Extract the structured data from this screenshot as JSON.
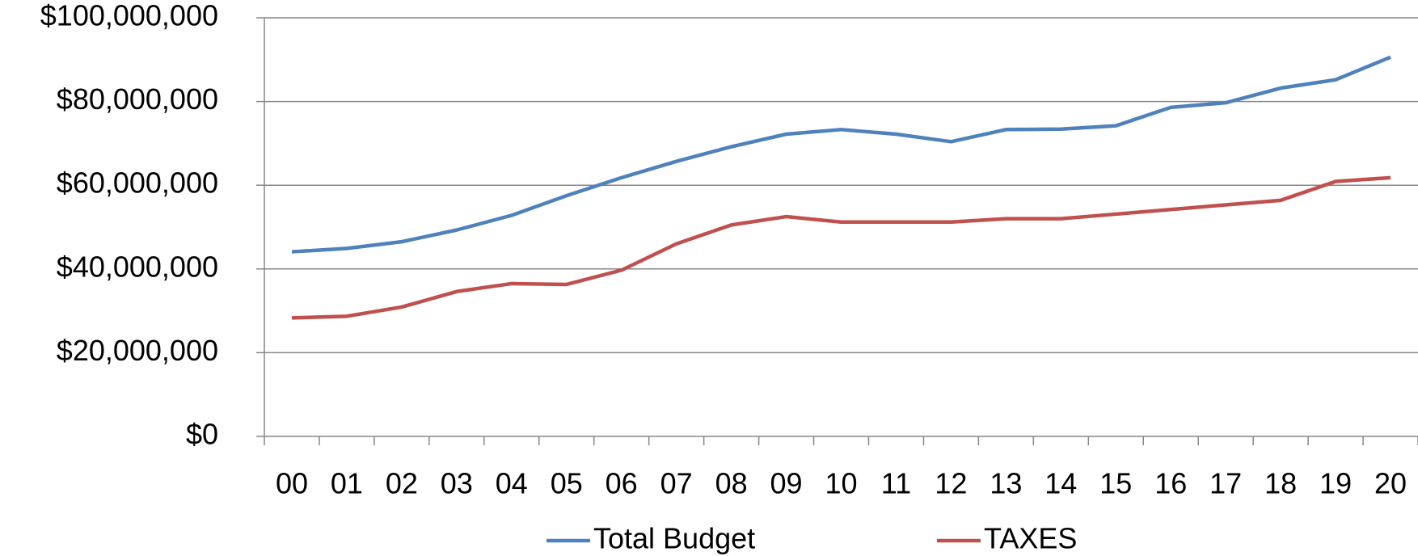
{
  "chart_data": {
    "type": "line",
    "categories": [
      "00",
      "01",
      "02",
      "03",
      "04",
      "05",
      "06",
      "07",
      "08",
      "09",
      "10",
      "11",
      "12",
      "13",
      "14",
      "15",
      "16",
      "17",
      "18",
      "19",
      "20"
    ],
    "series": [
      {
        "name": "Total Budget",
        "color": "#4f81bd",
        "values": [
          44.1,
          44.9,
          46.5,
          49.3,
          52.8,
          57.5,
          61.8,
          65.7,
          69.2,
          72.2,
          73.3,
          72.2,
          70.4,
          73.3,
          73.4,
          74.2,
          78.6,
          79.7,
          83.2,
          85.2,
          90.6
        ]
      },
      {
        "name": "TAXES",
        "color": "#c0504d",
        "values": [
          28.3,
          28.7,
          30.9,
          34.6,
          36.5,
          36.3,
          39.7,
          46.0,
          50.5,
          52.5,
          51.2,
          51.2,
          51.2,
          52.0,
          52.0,
          53.1,
          54.2,
          55.3,
          56.4,
          60.9,
          61.8
        ]
      }
    ],
    "ylim": [
      0,
      100000000
    ],
    "yticks": [
      {
        "value": 0,
        "label": "$0"
      },
      {
        "value": 20000000,
        "label": "$20,000,000"
      },
      {
        "value": 40000000,
        "label": "$40,000,000"
      },
      {
        "value": 60000000,
        "label": "$60,000,000"
      },
      {
        "value": 80000000,
        "label": "$80,000,000"
      },
      {
        "value": 100000000,
        "label": "$100,000,000"
      }
    ],
    "grid": true,
    "legend": "bottom"
  }
}
